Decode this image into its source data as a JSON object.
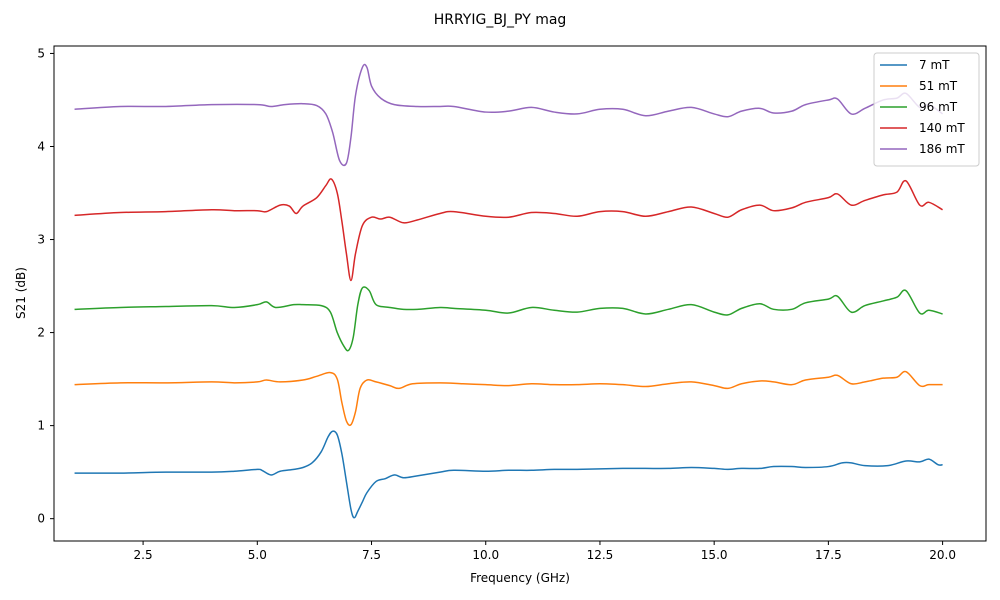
{
  "chart_data": {
    "type": "line",
    "title": "HRRYIG_BJ_PY mag",
    "xlabel": "Frequency (GHz)",
    "ylabel": "S21 (dB)",
    "xlim": [
      0.55,
      20.95
    ],
    "ylim": [
      -0.24,
      5.08
    ],
    "xticks": [
      2.5,
      5.0,
      7.5,
      10.0,
      12.5,
      15.0,
      17.5,
      20.0
    ],
    "xtick_labels": [
      "2.5",
      "5.0",
      "7.5",
      "10.0",
      "12.5",
      "15.0",
      "17.5",
      "20.0"
    ],
    "yticks": [
      0,
      1,
      2,
      3,
      4,
      5
    ],
    "ytick_labels": [
      "0",
      "1",
      "2",
      "3",
      "4",
      "5"
    ],
    "grid": false,
    "legend_position": "top-right",
    "series": [
      {
        "name": "7 mT",
        "color": "#1f77b4",
        "points": [
          [
            1.0,
            0.49
          ],
          [
            2.0,
            0.49
          ],
          [
            3.0,
            0.5
          ],
          [
            4.0,
            0.5
          ],
          [
            4.5,
            0.51
          ],
          [
            5.0,
            0.53
          ],
          [
            5.1,
            0.52
          ],
          [
            5.3,
            0.47
          ],
          [
            5.5,
            0.51
          ],
          [
            5.8,
            0.53
          ],
          [
            6.0,
            0.55
          ],
          [
            6.2,
            0.6
          ],
          [
            6.4,
            0.72
          ],
          [
            6.55,
            0.88
          ],
          [
            6.65,
            0.94
          ],
          [
            6.75,
            0.9
          ],
          [
            6.85,
            0.7
          ],
          [
            6.95,
            0.4
          ],
          [
            7.05,
            0.1
          ],
          [
            7.12,
            0.01
          ],
          [
            7.2,
            0.08
          ],
          [
            7.3,
            0.18
          ],
          [
            7.4,
            0.28
          ],
          [
            7.6,
            0.4
          ],
          [
            7.8,
            0.43
          ],
          [
            8.0,
            0.47
          ],
          [
            8.2,
            0.44
          ],
          [
            8.5,
            0.46
          ],
          [
            9.0,
            0.5
          ],
          [
            9.3,
            0.52
          ],
          [
            10.0,
            0.51
          ],
          [
            10.5,
            0.52
          ],
          [
            11.0,
            0.52
          ],
          [
            11.5,
            0.53
          ],
          [
            12.0,
            0.53
          ],
          [
            13.0,
            0.54
          ],
          [
            13.5,
            0.54
          ],
          [
            14.0,
            0.54
          ],
          [
            14.5,
            0.55
          ],
          [
            15.0,
            0.54
          ],
          [
            15.3,
            0.53
          ],
          [
            15.6,
            0.54
          ],
          [
            16.0,
            0.54
          ],
          [
            16.3,
            0.56
          ],
          [
            16.7,
            0.56
          ],
          [
            17.0,
            0.55
          ],
          [
            17.5,
            0.56
          ],
          [
            17.8,
            0.6
          ],
          [
            18.0,
            0.6
          ],
          [
            18.3,
            0.57
          ],
          [
            18.8,
            0.57
          ],
          [
            19.2,
            0.62
          ],
          [
            19.5,
            0.61
          ],
          [
            19.7,
            0.64
          ],
          [
            19.9,
            0.58
          ],
          [
            20.0,
            0.58
          ]
        ]
      },
      {
        "name": "51 mT",
        "color": "#ff7f0e",
        "points": [
          [
            1.0,
            1.44
          ],
          [
            2.0,
            1.46
          ],
          [
            3.0,
            1.46
          ],
          [
            4.0,
            1.47
          ],
          [
            4.5,
            1.46
          ],
          [
            5.0,
            1.47
          ],
          [
            5.2,
            1.49
          ],
          [
            5.5,
            1.47
          ],
          [
            6.0,
            1.49
          ],
          [
            6.3,
            1.53
          ],
          [
            6.6,
            1.57
          ],
          [
            6.75,
            1.5
          ],
          [
            6.85,
            1.25
          ],
          [
            6.95,
            1.05
          ],
          [
            7.05,
            1.01
          ],
          [
            7.15,
            1.15
          ],
          [
            7.25,
            1.4
          ],
          [
            7.4,
            1.49
          ],
          [
            7.6,
            1.47
          ],
          [
            7.9,
            1.43
          ],
          [
            8.1,
            1.4
          ],
          [
            8.4,
            1.45
          ],
          [
            9.0,
            1.46
          ],
          [
            9.5,
            1.45
          ],
          [
            10.0,
            1.44
          ],
          [
            10.5,
            1.43
          ],
          [
            11.0,
            1.45
          ],
          [
            11.5,
            1.44
          ],
          [
            12.0,
            1.44
          ],
          [
            12.5,
            1.45
          ],
          [
            13.0,
            1.44
          ],
          [
            13.5,
            1.42
          ],
          [
            14.0,
            1.45
          ],
          [
            14.5,
            1.47
          ],
          [
            15.0,
            1.43
          ],
          [
            15.3,
            1.4
          ],
          [
            15.6,
            1.45
          ],
          [
            16.0,
            1.48
          ],
          [
            16.3,
            1.47
          ],
          [
            16.7,
            1.44
          ],
          [
            17.0,
            1.49
          ],
          [
            17.5,
            1.52
          ],
          [
            17.7,
            1.54
          ],
          [
            18.0,
            1.45
          ],
          [
            18.3,
            1.47
          ],
          [
            18.7,
            1.51
          ],
          [
            19.0,
            1.52
          ],
          [
            19.2,
            1.58
          ],
          [
            19.5,
            1.43
          ],
          [
            19.7,
            1.44
          ],
          [
            20.0,
            1.44
          ]
        ]
      },
      {
        "name": "96 mT",
        "color": "#2ca02c",
        "points": [
          [
            1.0,
            2.25
          ],
          [
            2.0,
            2.27
          ],
          [
            3.0,
            2.28
          ],
          [
            4.0,
            2.29
          ],
          [
            4.5,
            2.27
          ],
          [
            5.0,
            2.3
          ],
          [
            5.2,
            2.33
          ],
          [
            5.4,
            2.27
          ],
          [
            5.8,
            2.3
          ],
          [
            6.0,
            2.3
          ],
          [
            6.4,
            2.29
          ],
          [
            6.6,
            2.22
          ],
          [
            6.75,
            2.0
          ],
          [
            6.9,
            1.85
          ],
          [
            7.0,
            1.81
          ],
          [
            7.1,
            1.95
          ],
          [
            7.2,
            2.3
          ],
          [
            7.3,
            2.48
          ],
          [
            7.45,
            2.45
          ],
          [
            7.6,
            2.3
          ],
          [
            7.9,
            2.27
          ],
          [
            8.2,
            2.25
          ],
          [
            8.5,
            2.25
          ],
          [
            9.0,
            2.27
          ],
          [
            9.3,
            2.26
          ],
          [
            10.0,
            2.24
          ],
          [
            10.5,
            2.21
          ],
          [
            11.0,
            2.27
          ],
          [
            11.5,
            2.24
          ],
          [
            12.0,
            2.22
          ],
          [
            12.5,
            2.26
          ],
          [
            13.0,
            2.26
          ],
          [
            13.5,
            2.2
          ],
          [
            14.0,
            2.25
          ],
          [
            14.5,
            2.3
          ],
          [
            15.0,
            2.22
          ],
          [
            15.3,
            2.19
          ],
          [
            15.6,
            2.26
          ],
          [
            16.0,
            2.31
          ],
          [
            16.3,
            2.25
          ],
          [
            16.7,
            2.25
          ],
          [
            17.0,
            2.32
          ],
          [
            17.5,
            2.36
          ],
          [
            17.7,
            2.39
          ],
          [
            18.0,
            2.22
          ],
          [
            18.3,
            2.29
          ],
          [
            18.7,
            2.34
          ],
          [
            19.0,
            2.38
          ],
          [
            19.2,
            2.45
          ],
          [
            19.5,
            2.21
          ],
          [
            19.7,
            2.24
          ],
          [
            20.0,
            2.2
          ]
        ]
      },
      {
        "name": "140 mT",
        "color": "#d62728",
        "points": [
          [
            1.0,
            3.26
          ],
          [
            2.0,
            3.29
          ],
          [
            3.0,
            3.3
          ],
          [
            4.0,
            3.32
          ],
          [
            4.5,
            3.31
          ],
          [
            5.0,
            3.31
          ],
          [
            5.2,
            3.3
          ],
          [
            5.5,
            3.37
          ],
          [
            5.7,
            3.36
          ],
          [
            5.85,
            3.28
          ],
          [
            6.0,
            3.36
          ],
          [
            6.3,
            3.45
          ],
          [
            6.5,
            3.58
          ],
          [
            6.62,
            3.65
          ],
          [
            6.75,
            3.5
          ],
          [
            6.85,
            3.2
          ],
          [
            6.95,
            2.85
          ],
          [
            7.05,
            2.56
          ],
          [
            7.15,
            2.85
          ],
          [
            7.3,
            3.15
          ],
          [
            7.5,
            3.24
          ],
          [
            7.7,
            3.22
          ],
          [
            7.9,
            3.24
          ],
          [
            8.2,
            3.18
          ],
          [
            8.5,
            3.21
          ],
          [
            9.0,
            3.28
          ],
          [
            9.3,
            3.3
          ],
          [
            10.0,
            3.25
          ],
          [
            10.5,
            3.24
          ],
          [
            11.0,
            3.29
          ],
          [
            11.5,
            3.28
          ],
          [
            12.0,
            3.25
          ],
          [
            12.5,
            3.3
          ],
          [
            13.0,
            3.3
          ],
          [
            13.5,
            3.25
          ],
          [
            14.0,
            3.3
          ],
          [
            14.5,
            3.35
          ],
          [
            15.0,
            3.28
          ],
          [
            15.3,
            3.24
          ],
          [
            15.6,
            3.32
          ],
          [
            16.0,
            3.37
          ],
          [
            16.3,
            3.31
          ],
          [
            16.7,
            3.34
          ],
          [
            17.0,
            3.4
          ],
          [
            17.5,
            3.45
          ],
          [
            17.7,
            3.49
          ],
          [
            18.0,
            3.37
          ],
          [
            18.3,
            3.42
          ],
          [
            18.7,
            3.48
          ],
          [
            19.0,
            3.51
          ],
          [
            19.2,
            3.63
          ],
          [
            19.5,
            3.37
          ],
          [
            19.7,
            3.4
          ],
          [
            20.0,
            3.32
          ]
        ]
      },
      {
        "name": "186 mT",
        "color": "#9467bd",
        "points": [
          [
            1.0,
            4.4
          ],
          [
            2.0,
            4.43
          ],
          [
            3.0,
            4.43
          ],
          [
            4.0,
            4.45
          ],
          [
            5.0,
            4.45
          ],
          [
            5.3,
            4.43
          ],
          [
            5.6,
            4.45
          ],
          [
            6.0,
            4.46
          ],
          [
            6.3,
            4.44
          ],
          [
            6.5,
            4.35
          ],
          [
            6.65,
            4.15
          ],
          [
            6.8,
            3.85
          ],
          [
            6.95,
            3.82
          ],
          [
            7.05,
            4.1
          ],
          [
            7.15,
            4.55
          ],
          [
            7.3,
            4.85
          ],
          [
            7.4,
            4.85
          ],
          [
            7.5,
            4.65
          ],
          [
            7.7,
            4.52
          ],
          [
            8.0,
            4.45
          ],
          [
            8.5,
            4.43
          ],
          [
            9.0,
            4.43
          ],
          [
            9.3,
            4.43
          ],
          [
            10.0,
            4.37
          ],
          [
            10.5,
            4.38
          ],
          [
            11.0,
            4.42
          ],
          [
            11.5,
            4.37
          ],
          [
            12.0,
            4.35
          ],
          [
            12.5,
            4.4
          ],
          [
            13.0,
            4.4
          ],
          [
            13.5,
            4.33
          ],
          [
            14.0,
            4.38
          ],
          [
            14.5,
            4.42
          ],
          [
            15.0,
            4.35
          ],
          [
            15.3,
            4.32
          ],
          [
            15.6,
            4.38
          ],
          [
            16.0,
            4.41
          ],
          [
            16.3,
            4.36
          ],
          [
            16.7,
            4.38
          ],
          [
            17.0,
            4.45
          ],
          [
            17.5,
            4.5
          ],
          [
            17.7,
            4.51
          ],
          [
            18.0,
            4.35
          ],
          [
            18.3,
            4.41
          ],
          [
            18.7,
            4.5
          ],
          [
            19.0,
            4.52
          ],
          [
            19.2,
            4.57
          ],
          [
            19.5,
            4.42
          ],
          [
            19.7,
            4.45
          ],
          [
            20.0,
            4.35
          ]
        ]
      }
    ]
  }
}
